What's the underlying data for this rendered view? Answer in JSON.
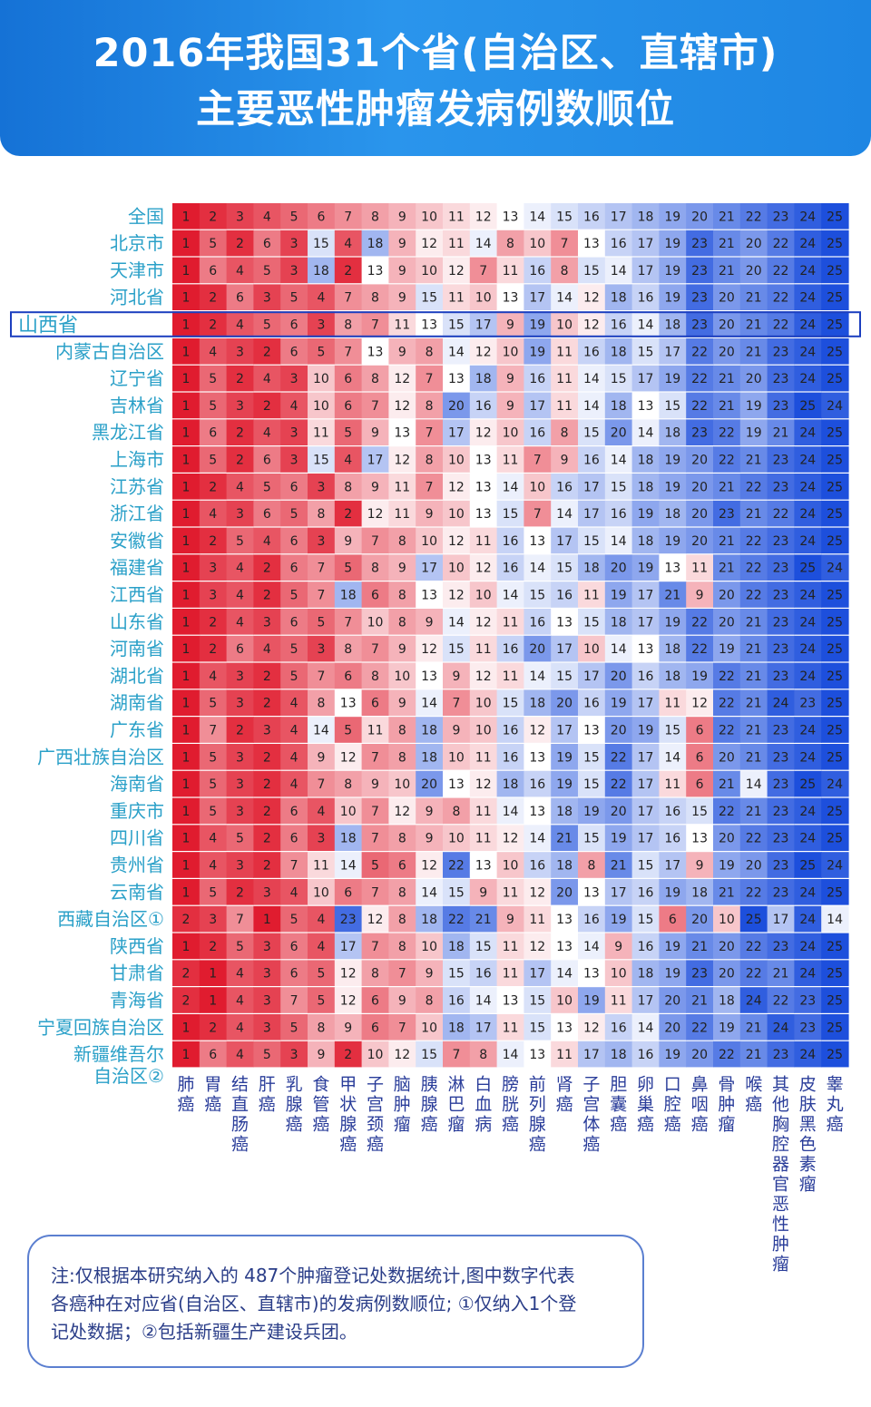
{
  "title": {
    "line1": "2016年我国31个省(自治区、直辖市)",
    "line2": "主要恶性肿瘤发病例数顺位"
  },
  "colors": {
    "banner": "#1e86e3",
    "label_text": "#2aa0c8",
    "highlight_border": "#1c3fbf",
    "rank_1": "#e01c2f",
    "rank_13": "#ffffff",
    "rank_25": "#1d4fdc"
  },
  "chart_data": {
    "type": "heatmap",
    "value_meaning": "发病例数顺位",
    "highlighted_row": "山西省",
    "cancers": [
      "肺癌",
      "胃癌",
      "结直肠癌",
      "肝癌",
      "乳腺癌",
      "食管癌",
      "甲状腺癌",
      "子宫颈癌",
      "脑肿瘤",
      "胰腺癌",
      "淋巴瘤",
      "白血病",
      "膀胱癌",
      "前列腺癌",
      "肾癌",
      "子宫体癌",
      "胆囊癌",
      "卵巢癌",
      "口腔癌",
      "鼻咽癌",
      "骨肿瘤",
      "喉癌",
      "其他胸腔器官恶性肿瘤",
      "皮肤黑色素瘤",
      "睾丸癌"
    ],
    "rows": [
      {
        "region": "全国",
        "ranks": [
          1,
          2,
          3,
          4,
          5,
          6,
          7,
          8,
          9,
          10,
          11,
          12,
          13,
          14,
          15,
          16,
          17,
          18,
          19,
          20,
          21,
          22,
          23,
          24,
          25
        ]
      },
      {
        "region": "北京市",
        "ranks": [
          1,
          5,
          2,
          6,
          3,
          15,
          4,
          18,
          9,
          12,
          11,
          14,
          8,
          10,
          7,
          13,
          16,
          17,
          19,
          23,
          21,
          20,
          22,
          24,
          25
        ]
      },
      {
        "region": "天津市",
        "ranks": [
          1,
          6,
          4,
          5,
          3,
          18,
          2,
          13,
          9,
          10,
          12,
          7,
          11,
          16,
          8,
          15,
          14,
          17,
          19,
          23,
          21,
          20,
          22,
          24,
          25
        ]
      },
      {
        "region": "河北省",
        "ranks": [
          1,
          2,
          6,
          3,
          5,
          4,
          7,
          8,
          9,
          15,
          11,
          10,
          13,
          17,
          14,
          12,
          18,
          16,
          19,
          23,
          20,
          21,
          22,
          24,
          25
        ]
      },
      {
        "region": "山西省",
        "ranks": [
          1,
          2,
          4,
          5,
          6,
          3,
          8,
          7,
          11,
          13,
          15,
          17,
          9,
          19,
          10,
          12,
          16,
          14,
          18,
          23,
          20,
          21,
          22,
          24,
          25
        ]
      },
      {
        "region": "内蒙古自治区",
        "ranks": [
          1,
          4,
          3,
          2,
          6,
          5,
          7,
          13,
          9,
          8,
          14,
          12,
          10,
          19,
          11,
          16,
          18,
          15,
          17,
          22,
          20,
          21,
          23,
          24,
          25
        ]
      },
      {
        "region": "辽宁省",
        "ranks": [
          1,
          5,
          2,
          4,
          3,
          10,
          6,
          8,
          12,
          7,
          13,
          18,
          9,
          16,
          11,
          14,
          15,
          17,
          19,
          22,
          21,
          20,
          23,
          24,
          25
        ]
      },
      {
        "region": "吉林省",
        "ranks": [
          1,
          5,
          3,
          2,
          4,
          10,
          6,
          7,
          12,
          8,
          20,
          16,
          9,
          17,
          11,
          14,
          18,
          13,
          15,
          22,
          21,
          19,
          23,
          25,
          24
        ]
      },
      {
        "region": "黑龙江省",
        "ranks": [
          1,
          6,
          2,
          4,
          3,
          11,
          5,
          9,
          13,
          7,
          17,
          12,
          10,
          16,
          8,
          15,
          20,
          14,
          18,
          23,
          22,
          19,
          21,
          24,
          25
        ]
      },
      {
        "region": "上海市",
        "ranks": [
          1,
          5,
          2,
          6,
          3,
          15,
          4,
          17,
          12,
          8,
          10,
          13,
          11,
          7,
          9,
          16,
          14,
          18,
          19,
          20,
          22,
          21,
          23,
          24,
          25
        ]
      },
      {
        "region": "江苏省",
        "ranks": [
          1,
          2,
          4,
          5,
          6,
          3,
          8,
          9,
          11,
          7,
          12,
          13,
          14,
          10,
          16,
          17,
          15,
          18,
          19,
          20,
          21,
          22,
          23,
          24,
          25
        ]
      },
      {
        "region": "浙江省",
        "ranks": [
          1,
          4,
          3,
          6,
          5,
          8,
          2,
          12,
          11,
          9,
          10,
          13,
          15,
          7,
          14,
          17,
          16,
          19,
          18,
          20,
          23,
          21,
          22,
          24,
          25
        ]
      },
      {
        "region": "安徽省",
        "ranks": [
          1,
          2,
          5,
          4,
          6,
          3,
          9,
          7,
          8,
          10,
          12,
          11,
          16,
          13,
          17,
          15,
          14,
          18,
          19,
          20,
          21,
          22,
          23,
          24,
          25
        ]
      },
      {
        "region": "福建省",
        "ranks": [
          1,
          3,
          4,
          2,
          6,
          7,
          5,
          8,
          9,
          17,
          10,
          12,
          16,
          14,
          15,
          18,
          20,
          19,
          13,
          11,
          21,
          22,
          23,
          25,
          24
        ]
      },
      {
        "region": "江西省",
        "ranks": [
          1,
          3,
          4,
          2,
          5,
          7,
          18,
          6,
          8,
          13,
          12,
          10,
          14,
          15,
          16,
          11,
          19,
          17,
          21,
          9,
          20,
          22,
          23,
          24,
          25
        ]
      },
      {
        "region": "山东省",
        "ranks": [
          1,
          2,
          4,
          3,
          6,
          5,
          7,
          10,
          8,
          9,
          14,
          12,
          11,
          16,
          13,
          15,
          18,
          17,
          19,
          22,
          20,
          21,
          23,
          24,
          25
        ]
      },
      {
        "region": "河南省",
        "ranks": [
          1,
          2,
          6,
          4,
          5,
          3,
          8,
          7,
          9,
          12,
          15,
          11,
          16,
          20,
          17,
          10,
          14,
          13,
          18,
          22,
          19,
          21,
          23,
          24,
          25
        ]
      },
      {
        "region": "湖北省",
        "ranks": [
          1,
          4,
          3,
          2,
          5,
          7,
          6,
          8,
          10,
          13,
          9,
          12,
          11,
          14,
          15,
          17,
          20,
          16,
          18,
          19,
          22,
          21,
          23,
          24,
          25
        ]
      },
      {
        "region": "湖南省",
        "ranks": [
          1,
          5,
          3,
          2,
          4,
          8,
          13,
          6,
          9,
          14,
          7,
          10,
          15,
          18,
          20,
          16,
          19,
          17,
          11,
          12,
          22,
          21,
          24,
          23,
          25
        ]
      },
      {
        "region": "广东省",
        "ranks": [
          1,
          7,
          2,
          3,
          4,
          14,
          5,
          11,
          8,
          18,
          9,
          10,
          16,
          12,
          17,
          13,
          20,
          19,
          15,
          6,
          22,
          21,
          23,
          24,
          25
        ]
      },
      {
        "region": "广西壮族自治区",
        "ranks": [
          1,
          5,
          3,
          2,
          4,
          9,
          12,
          7,
          8,
          18,
          10,
          11,
          16,
          13,
          19,
          15,
          22,
          17,
          14,
          6,
          20,
          21,
          23,
          24,
          25
        ]
      },
      {
        "region": "海南省",
        "ranks": [
          1,
          5,
          3,
          2,
          4,
          7,
          8,
          9,
          10,
          20,
          13,
          12,
          18,
          16,
          19,
          15,
          22,
          17,
          11,
          6,
          21,
          14,
          23,
          25,
          24
        ]
      },
      {
        "region": "重庆市",
        "ranks": [
          1,
          5,
          3,
          2,
          6,
          4,
          10,
          7,
          12,
          9,
          8,
          11,
          14,
          13,
          18,
          19,
          20,
          17,
          16,
          15,
          22,
          21,
          23,
          24,
          25
        ]
      },
      {
        "region": "四川省",
        "ranks": [
          1,
          4,
          5,
          2,
          6,
          3,
          18,
          7,
          8,
          9,
          10,
          11,
          12,
          14,
          21,
          15,
          19,
          17,
          16,
          13,
          20,
          22,
          23,
          24,
          25
        ]
      },
      {
        "region": "贵州省",
        "ranks": [
          1,
          4,
          3,
          2,
          7,
          11,
          14,
          5,
          6,
          12,
          22,
          13,
          10,
          16,
          18,
          8,
          21,
          15,
          17,
          9,
          19,
          20,
          23,
          25,
          24
        ]
      },
      {
        "region": "云南省",
        "ranks": [
          1,
          5,
          2,
          3,
          4,
          10,
          6,
          7,
          8,
          14,
          15,
          9,
          11,
          12,
          20,
          13,
          17,
          16,
          19,
          18,
          21,
          22,
          23,
          24,
          25
        ]
      },
      {
        "region": "西藏自治区①",
        "ranks": [
          2,
          3,
          7,
          1,
          5,
          4,
          23,
          12,
          8,
          18,
          22,
          21,
          9,
          11,
          13,
          16,
          19,
          15,
          6,
          20,
          10,
          25,
          17,
          24,
          14
        ]
      },
      {
        "region": "陕西省",
        "ranks": [
          1,
          2,
          5,
          3,
          6,
          4,
          17,
          7,
          8,
          10,
          18,
          15,
          11,
          12,
          13,
          14,
          9,
          16,
          19,
          21,
          20,
          22,
          23,
          24,
          25
        ]
      },
      {
        "region": "甘肃省",
        "ranks": [
          2,
          1,
          4,
          3,
          6,
          5,
          12,
          8,
          7,
          9,
          15,
          16,
          11,
          17,
          14,
          13,
          10,
          18,
          19,
          23,
          20,
          22,
          21,
          24,
          25
        ]
      },
      {
        "region": "青海省",
        "ranks": [
          2,
          1,
          4,
          3,
          7,
          5,
          12,
          6,
          9,
          8,
          16,
          14,
          13,
          15,
          10,
          19,
          11,
          17,
          20,
          21,
          18,
          24,
          22,
          23,
          25
        ]
      },
      {
        "region": "宁夏回族自治区",
        "ranks": [
          1,
          2,
          4,
          3,
          5,
          8,
          9,
          6,
          7,
          10,
          18,
          17,
          11,
          15,
          13,
          12,
          16,
          14,
          20,
          22,
          19,
          21,
          24,
          23,
          25
        ]
      },
      {
        "region": "新疆维吾尔自治区②",
        "ranks": [
          1,
          6,
          4,
          5,
          3,
          9,
          2,
          10,
          12,
          15,
          7,
          8,
          14,
          13,
          11,
          17,
          18,
          16,
          19,
          20,
          22,
          21,
          23,
          24,
          25
        ]
      }
    ]
  },
  "note": {
    "line1": "注:仅根据本研究纳入的 487个肿瘤登记处数据统计,图中数字代表",
    "line2": "各癌种在对应省(自治区、直辖市)的发病例数顺位; ①仅纳入1个登",
    "line3": "记处数据；②包括新疆生产建设兵团。"
  }
}
